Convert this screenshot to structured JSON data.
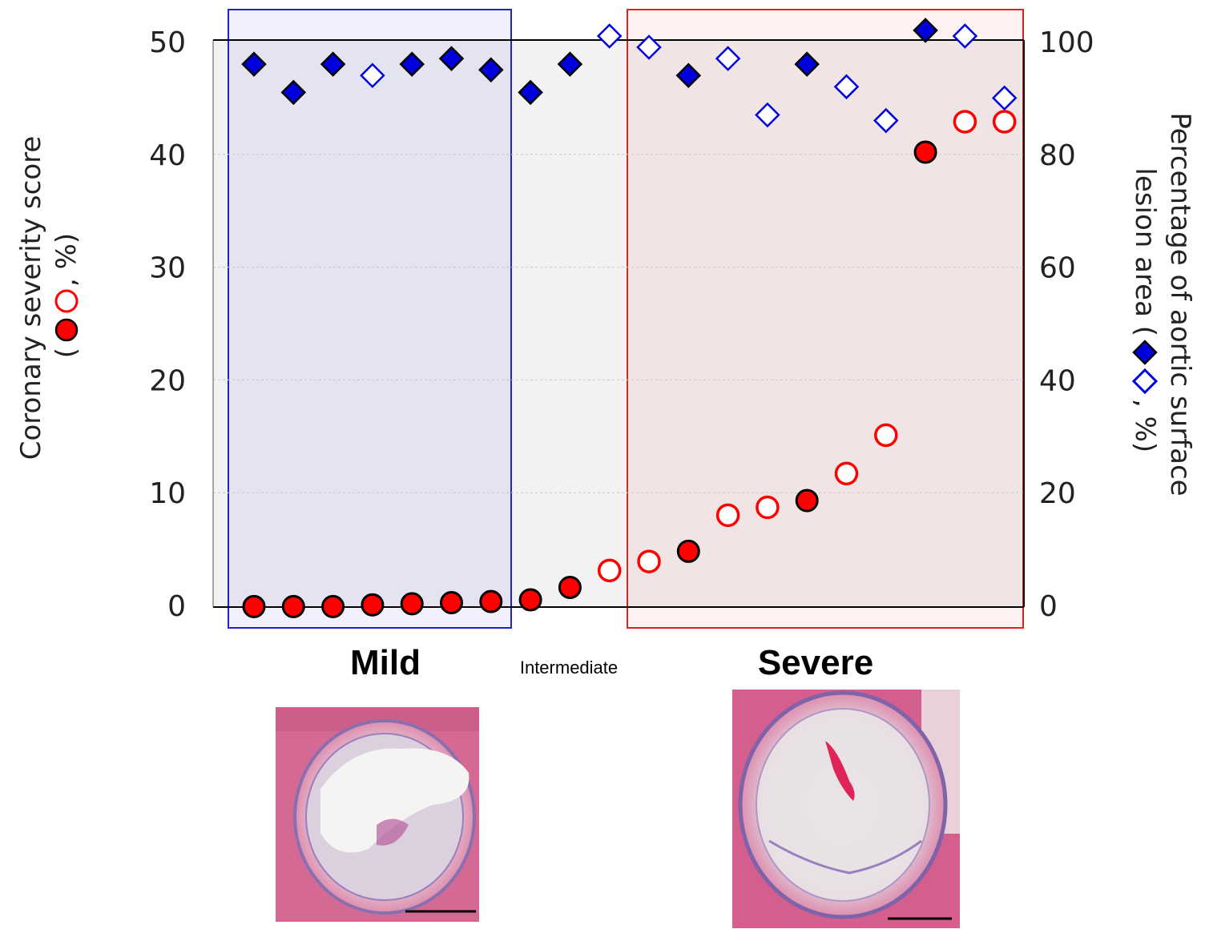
{
  "chart_data": {
    "type": "scatter",
    "title": "",
    "left_axis": {
      "label_line1": "Coronary severity score",
      "label_line2_pre": "(",
      "label_line2_post": ", %)",
      "ylim": [
        0,
        50
      ],
      "ticks": [
        0,
        10,
        20,
        30,
        40,
        50
      ]
    },
    "right_axis": {
      "label_line1": "Percentage of aortic surface",
      "label_line2_pre": "lesion area (",
      "label_line2_post": ", %)",
      "ylim": [
        0,
        100
      ],
      "ticks": [
        0,
        20,
        40,
        60,
        80,
        100
      ]
    },
    "grid": true,
    "groups": [
      {
        "name": "Mild",
        "from_index": 1,
        "to_index": 7,
        "color": "#2222cc"
      },
      {
        "name": "Intermediate",
        "from_index": 8,
        "to_index": 9
      },
      {
        "name": "Severe",
        "from_index": 10,
        "to_index": 19,
        "color": "#e02020"
      }
    ],
    "coronary_score": {
      "axis": "left",
      "marker": "circle",
      "values": [
        -0.1,
        -0.1,
        -0.1,
        0.05,
        0.15,
        0.25,
        0.35,
        0.5,
        1.6,
        3.1,
        3.9,
        4.8,
        8.0,
        8.7,
        9.3,
        11.7,
        15.1,
        40.2,
        42.9,
        42.9
      ],
      "filled": [
        true,
        true,
        true,
        true,
        true,
        true,
        true,
        true,
        true,
        false,
        false,
        true,
        false,
        false,
        true,
        false,
        false,
        true,
        false,
        false
      ]
    },
    "aortic_lesion": {
      "axis": "right",
      "marker": "diamond",
      "values": [
        96,
        91,
        96,
        94,
        96,
        97,
        95,
        91,
        96,
        101,
        99,
        94,
        97,
        87,
        96,
        92,
        86,
        102,
        101,
        90
      ],
      "filled": [
        true,
        true,
        true,
        false,
        true,
        true,
        true,
        true,
        true,
        false,
        false,
        true,
        false,
        false,
        true,
        false,
        false,
        true,
        false,
        false
      ],
      "fill_colors": [
        "#0000dd",
        "#0000dd",
        "#0000dd",
        "",
        "#0000dd",
        "#0000dd",
        "#0000dd",
        "#0000dd",
        "#0000dd",
        "",
        "",
        "#0000dd",
        "#ffffff",
        "",
        "#0000dd",
        "",
        "",
        "#0000dd",
        "",
        ""
      ]
    },
    "colors": {
      "circle": "#ff0000",
      "diamond": "#0000dd",
      "plot_bg": "#f2f2f2"
    }
  }
}
